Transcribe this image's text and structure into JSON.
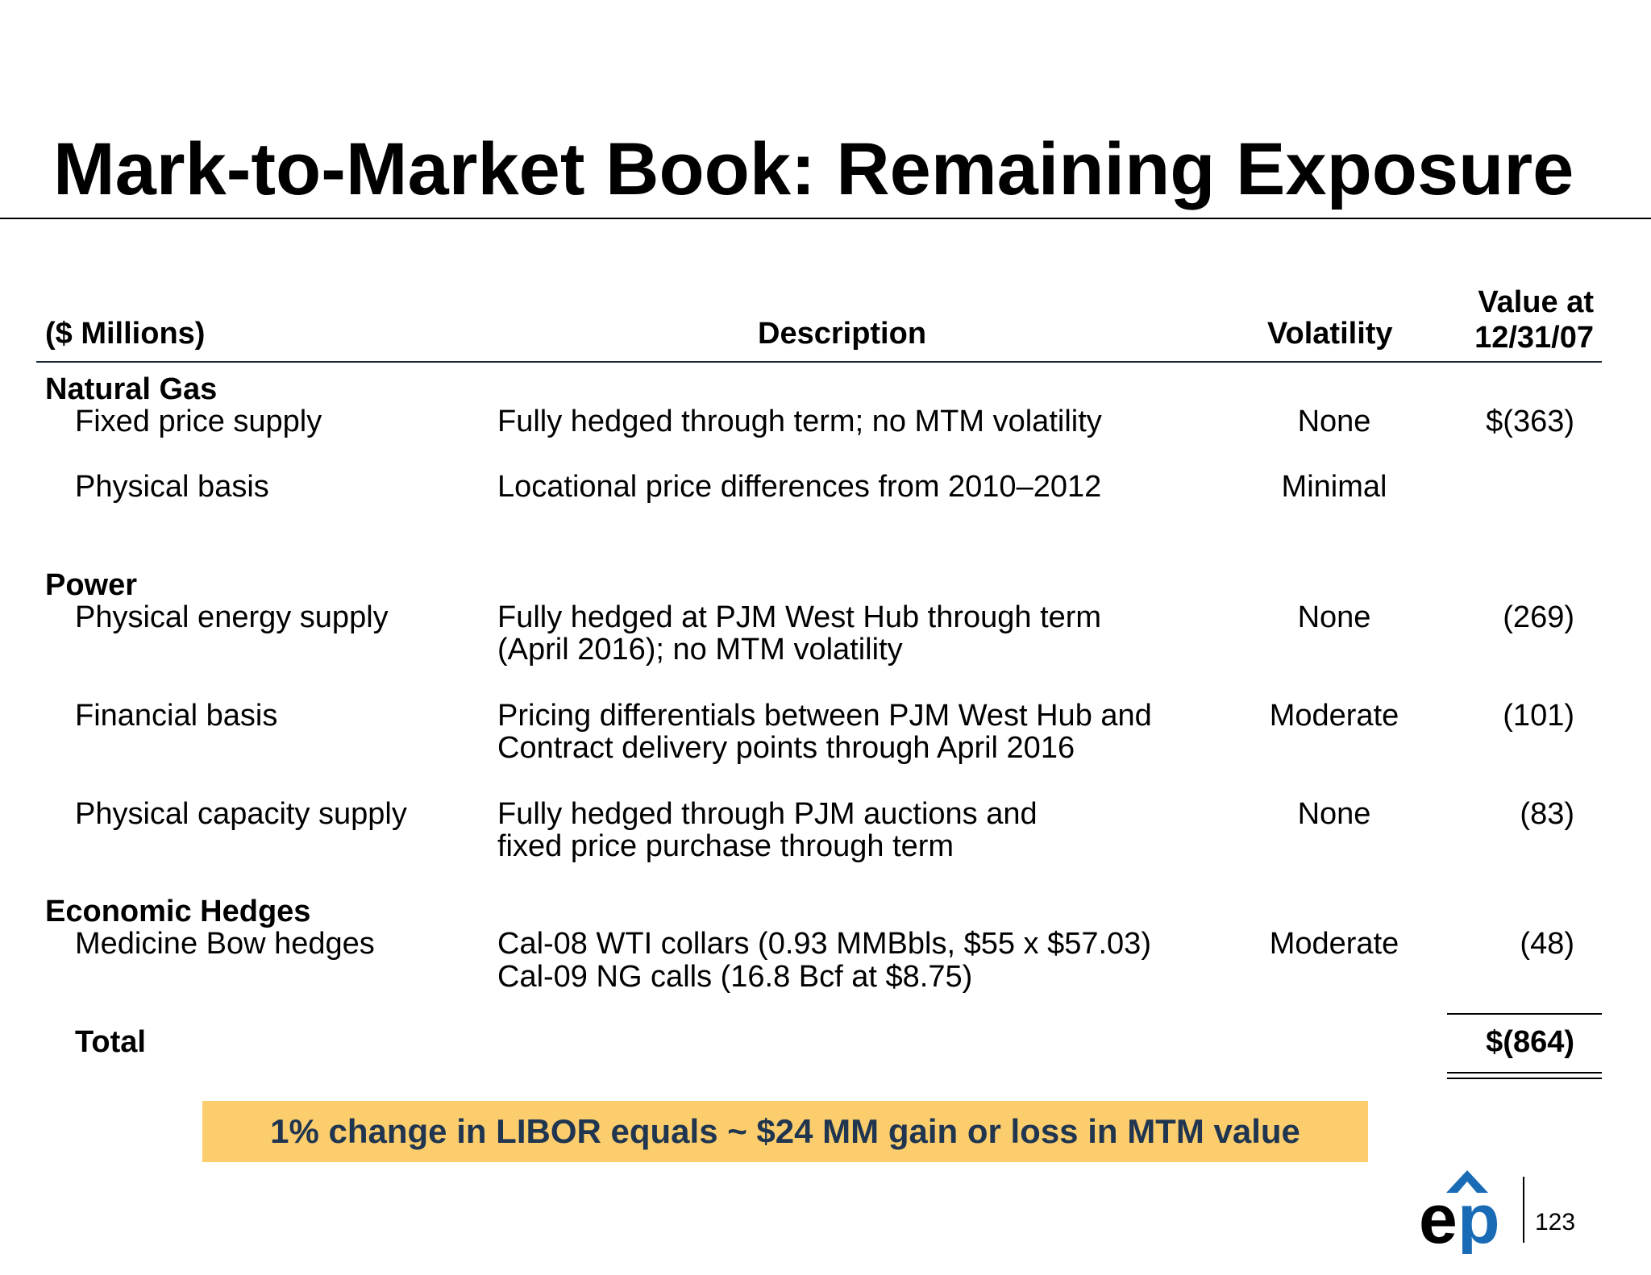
{
  "title": "Mark-to-Market Book: Remaining Exposure",
  "table": {
    "headers": {
      "units": "($ Millions)",
      "description": "Description",
      "volatility": "Volatility",
      "value_line1": "Value at",
      "value_line2": "12/31/07"
    },
    "sections": [
      {
        "name": "Natural Gas",
        "rows": [
          {
            "item": "Fixed price supply",
            "desc_line1": "Fully hedged through term; no MTM volatility",
            "desc_line2": "",
            "volatility": "None",
            "value": "$(363)"
          },
          {
            "item": "Physical basis",
            "desc_line1": "Locational price differences from 2010–2012",
            "desc_line2": "",
            "volatility": "Minimal",
            "value": ""
          }
        ]
      },
      {
        "name": "Power",
        "rows": [
          {
            "item": "Physical energy supply",
            "desc_line1": "Fully hedged at PJM West Hub through term",
            "desc_line2": "(April 2016); no MTM volatility",
            "volatility": "None",
            "value": "(269)"
          },
          {
            "item": "Financial basis",
            "desc_line1": "Pricing differentials between PJM West Hub and",
            "desc_line2": "Contract delivery points through April 2016",
            "volatility": "Moderate",
            "value": "(101)"
          },
          {
            "item": "Physical capacity supply",
            "desc_line1": "Fully hedged through PJM auctions and",
            "desc_line2": "fixed price purchase through term",
            "volatility": "None",
            "value": "(83)"
          }
        ]
      },
      {
        "name": "Economic Hedges",
        "rows": [
          {
            "item": "Medicine Bow hedges",
            "desc_line1": "Cal-08 WTI collars (0.93 MMBbls, $55 x $57.03)",
            "desc_line2": "Cal-09 NG calls (16.8 Bcf at $8.75)",
            "volatility": "Moderate",
            "value": "(48)"
          }
        ]
      }
    ],
    "total": {
      "label": "Total",
      "value": "$(864)"
    }
  },
  "callout": "1% change in LIBOR equals ~ $24 MM gain or loss in MTM value",
  "logo": {
    "text": "ep",
    "colors": {
      "e": "#000000",
      "p": "#1a6bb5",
      "chevron": "#1a6bb5"
    }
  },
  "page_number": "123"
}
